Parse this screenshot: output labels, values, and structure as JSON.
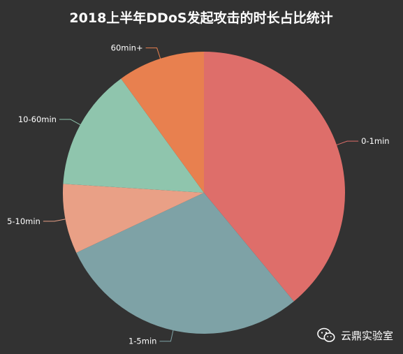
{
  "chart_data": {
    "type": "pie",
    "title": "2018上半年DDoS发起攻击的时长占比统计",
    "categories": [
      "0-1min",
      "1-5min",
      "5-10min",
      "10-60min",
      "60min+"
    ],
    "values": [
      39,
      29,
      8,
      14,
      10
    ],
    "colors": [
      "#de6e6a",
      "#7ea2a6",
      "#e9a086",
      "#8fc5ad",
      "#e8804f"
    ],
    "start_angle_deg": 90,
    "direction": "clockwise",
    "legend": "none"
  },
  "watermark": {
    "text": "云鼎实验室",
    "icon": "wechat-icon"
  }
}
